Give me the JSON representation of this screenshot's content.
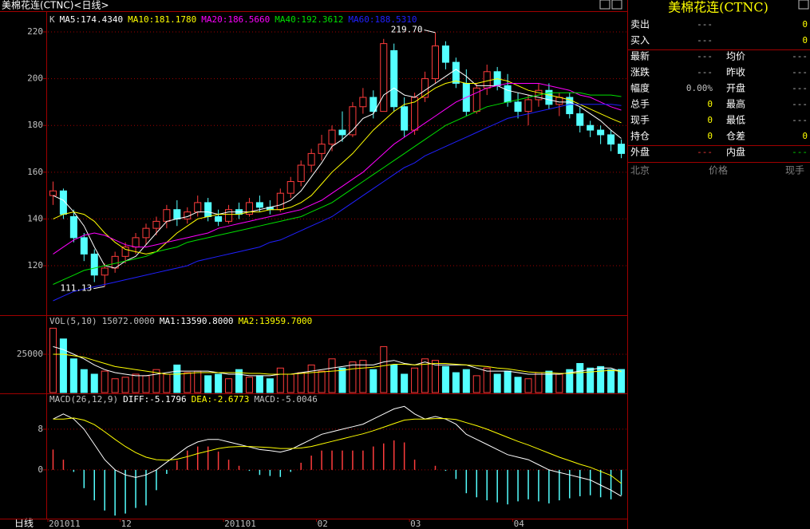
{
  "window": {
    "title": "美棉花连(CTNC)<日线>",
    "period": "日线"
  },
  "chart_data": [
    {
      "type": "candlestick",
      "title": "K",
      "categories": [
        "201011",
        null,
        null,
        null,
        null,
        null,
        null,
        "12",
        null,
        null,
        null,
        null,
        null,
        null,
        null,
        null,
        null,
        "201101",
        null,
        null,
        null,
        null,
        null,
        null,
        null,
        null,
        "02",
        null,
        null,
        null,
        null,
        null,
        null,
        null,
        null,
        "03",
        null,
        null,
        null,
        null,
        null,
        null,
        null,
        null,
        null,
        "04",
        null,
        null,
        null,
        null,
        null,
        null,
        null,
        null,
        null,
        null
      ],
      "open": [
        150,
        152,
        141,
        132,
        125,
        116,
        119,
        124,
        128,
        132,
        136,
        139,
        144,
        140,
        143,
        147,
        141,
        139,
        144,
        142,
        147,
        145,
        144,
        151,
        156,
        163,
        168,
        172,
        178,
        176,
        188,
        192,
        186,
        212,
        188,
        178,
        192,
        200,
        214,
        207,
        198,
        186,
        196,
        203,
        197,
        190,
        186,
        191,
        195,
        189,
        192,
        185,
        180,
        178,
        176,
        172
      ],
      "high": [
        156,
        153,
        144,
        134,
        127,
        121,
        126,
        130,
        134,
        138,
        141,
        146,
        148,
        145,
        150,
        149,
        144,
        146,
        147,
        149,
        150,
        148,
        153,
        158,
        165,
        170,
        176,
        180,
        186,
        190,
        196,
        195,
        217,
        215,
        192,
        194,
        203,
        219.7,
        216,
        209,
        204,
        198,
        206,
        205,
        202,
        194,
        193,
        198,
        198,
        194,
        194,
        188,
        182,
        180,
        178,
        174
      ],
      "low": [
        146,
        140,
        130,
        122,
        113,
        111.13,
        117,
        121,
        125,
        129,
        133,
        136,
        137,
        138,
        141,
        139,
        137,
        138,
        140,
        141,
        143,
        142,
        143,
        149,
        154,
        160,
        165,
        169,
        173,
        175,
        185,
        183,
        186,
        186,
        175,
        176,
        190,
        198,
        204,
        196,
        184,
        185,
        193,
        195,
        188,
        183,
        180,
        188,
        187,
        184,
        183,
        177,
        175,
        172,
        169,
        166
      ],
      "close": [
        152,
        142,
        132,
        125,
        116,
        119,
        124,
        128,
        132,
        136,
        139,
        144,
        140,
        143,
        147,
        141,
        139,
        144,
        142,
        147,
        145,
        144,
        151,
        156,
        163,
        168,
        172,
        178,
        176,
        188,
        192,
        186,
        215,
        188,
        178,
        192,
        200,
        214,
        207,
        198,
        186,
        196,
        203,
        197,
        190,
        186,
        191,
        195,
        189,
        192,
        185,
        180,
        178,
        176,
        172,
        168
      ],
      "up_color": "#ff3c3c",
      "down_color": "#54ffff",
      "series": [
        {
          "name": "MA5:174.4340",
          "color": "#ffffff",
          "values": [
            150,
            148,
            143,
            137,
            128,
            120,
            119,
            122,
            124,
            129,
            134,
            139,
            140,
            141,
            143,
            143,
            142,
            143,
            143,
            143,
            144,
            145,
            146,
            148,
            152,
            158,
            164,
            171,
            174,
            178,
            183,
            185,
            193,
            196,
            193,
            192,
            195,
            198,
            201,
            204,
            201,
            197,
            197,
            197,
            195,
            194,
            193,
            192,
            191,
            190,
            190,
            188,
            185,
            182,
            178,
            174.434
          ]
        },
        {
          "name": "MA10:181.1780",
          "color": "#ffff00",
          "values": [
            140,
            142,
            143,
            142,
            139,
            134,
            130,
            127,
            126,
            125,
            126,
            130,
            134,
            137,
            140,
            141,
            142,
            142,
            142,
            143,
            143,
            144,
            144,
            145,
            147,
            150,
            155,
            160,
            164,
            168,
            173,
            178,
            182,
            186,
            189,
            190,
            193,
            196,
            198,
            199,
            198,
            198,
            199,
            200,
            199,
            197,
            195,
            194,
            193,
            192,
            191,
            189,
            187,
            185,
            183,
            181.178
          ]
        },
        {
          "name": "MA20:186.5660",
          "color": "#ff00ff",
          "values": [
            125,
            128,
            131,
            133,
            134,
            133,
            131,
            129,
            128,
            128,
            129,
            130,
            131,
            132,
            133,
            134,
            136,
            137,
            138,
            139,
            140,
            141,
            142,
            143,
            144,
            146,
            148,
            151,
            154,
            157,
            160,
            164,
            168,
            172,
            175,
            178,
            181,
            184,
            187,
            190,
            192,
            194,
            196,
            197,
            198,
            198,
            198,
            198,
            197,
            196,
            195,
            193,
            192,
            190,
            188,
            186.566
          ]
        },
        {
          "name": "MA40:192.3612",
          "color": "#00e000",
          "values": [
            112,
            114,
            116,
            118,
            119,
            120,
            121,
            122,
            123,
            124,
            126,
            127,
            128,
            130,
            131,
            132,
            133,
            134,
            135,
            136,
            137,
            138,
            139,
            140,
            141,
            143,
            145,
            147,
            150,
            153,
            156,
            159,
            162,
            165,
            168,
            171,
            174,
            177,
            180,
            182,
            184,
            186,
            188,
            189,
            190,
            191,
            192,
            193,
            194,
            194,
            194,
            194,
            193,
            193,
            193,
            192.3612
          ]
        },
        {
          "name": "MA60:188.5310",
          "color": "#2020ff",
          "values": [
            105,
            107,
            109,
            110,
            111,
            112,
            113,
            114,
            115,
            116,
            117,
            118,
            119,
            120,
            122,
            123,
            124,
            125,
            126,
            127,
            128,
            130,
            131,
            133,
            135,
            137,
            139,
            141,
            144,
            147,
            150,
            153,
            156,
            159,
            162,
            164,
            167,
            169,
            171,
            173,
            175,
            177,
            179,
            181,
            183,
            184,
            185,
            186,
            187,
            188,
            189,
            189,
            189,
            189,
            189,
            188.531
          ]
        }
      ],
      "annotations": [
        "219.70",
        "111.13"
      ],
      "ylim": [
        99.2,
        227.5
      ],
      "yticks": [
        120,
        140,
        160,
        180,
        200,
        220
      ],
      "grid": true
    },
    {
      "type": "bar",
      "title": "VOL(5,10)",
      "current_label": "15072.0000",
      "values": [
        42000,
        35000,
        22000,
        15000,
        12000,
        14000,
        9000,
        10000,
        12000,
        11000,
        15000,
        12000,
        18000,
        13000,
        14000,
        11000,
        12000,
        9000,
        15000,
        10000,
        11000,
        9000,
        16000,
        12000,
        13000,
        18000,
        14000,
        22000,
        16000,
        20000,
        21000,
        15000,
        30000,
        18000,
        12000,
        16000,
        22000,
        21000,
        17000,
        13000,
        15000,
        11000,
        16000,
        12000,
        14000,
        10000,
        9000,
        13000,
        14000,
        12000,
        15000,
        19000,
        16000,
        17000,
        15000,
        15072
      ],
      "series": [
        {
          "name": "MA1:13590.8000",
          "color": "#ffffff",
          "values": [
            30000,
            28000,
            25000,
            22000,
            18000,
            15000,
            13000,
            12000,
            11000,
            11000,
            12000,
            13000,
            14000,
            14000,
            14000,
            14000,
            13000,
            12000,
            12000,
            11000,
            11000,
            11000,
            12000,
            12000,
            13000,
            14000,
            15000,
            16000,
            17000,
            18000,
            18000,
            18000,
            20000,
            21000,
            19000,
            18000,
            20000,
            18000,
            18000,
            18000,
            18000,
            16000,
            14000,
            14000,
            14000,
            13000,
            12000,
            12000,
            12000,
            12000,
            13000,
            14000,
            15000,
            16000,
            16000,
            13590.8
          ]
        },
        {
          "name": "MA2:13959.7000",
          "color": "#ffff00",
          "values": [
            25000,
            25000,
            24000,
            23000,
            21000,
            19000,
            17000,
            16000,
            15000,
            14000,
            13000,
            12000,
            12000,
            12500,
            13000,
            13000,
            13000,
            13000,
            13000,
            12500,
            12500,
            12000,
            12000,
            12000,
            12500,
            13000,
            13500,
            14000,
            14500,
            15500,
            16000,
            16500,
            17500,
            18500,
            18500,
            18000,
            18500,
            19000,
            19000,
            18500,
            18000,
            17500,
            17000,
            16000,
            15500,
            14500,
            13500,
            13000,
            13000,
            12500,
            12500,
            13000,
            13500,
            14000,
            14500,
            13959.7
          ]
        }
      ],
      "ylim": [
        0,
        50000
      ],
      "yticks": [
        25000
      ],
      "grid": true
    },
    {
      "type": "line",
      "title": "MACD(26,12,9)",
      "series": [
        {
          "name": "DIFF:-5.1796",
          "color": "#ffffff",
          "values": [
            10,
            11,
            10,
            8,
            5,
            2,
            0,
            -1,
            -1.5,
            -1,
            0,
            1.5,
            3,
            4.5,
            5.5,
            6,
            6,
            5.5,
            5,
            4.5,
            4,
            3.8,
            3.5,
            4,
            5,
            6,
            7,
            7.5,
            8,
            8.5,
            9,
            10,
            11,
            12,
            12.5,
            11,
            10,
            10.5,
            10,
            9,
            7,
            6,
            5,
            4,
            3,
            2.5,
            2,
            1,
            0,
            -0.5,
            -1,
            -1.5,
            -2,
            -3,
            -4,
            -5.1796
          ]
        },
        {
          "name": "DEA:-2.6773",
          "color": "#ffff00",
          "values": [
            10,
            10,
            10.2,
            9.8,
            8.9,
            7.5,
            6,
            4.6,
            3.4,
            2.5,
            2,
            1.9,
            2.1,
            2.6,
            3.2,
            3.7,
            4.2,
            4.5,
            4.6,
            4.6,
            4.5,
            4.4,
            4.2,
            4.2,
            4.3,
            4.6,
            5.1,
            5.6,
            6.1,
            6.6,
            7.1,
            7.7,
            8.4,
            9.1,
            9.8,
            10,
            10,
            10.1,
            10.1,
            9.9,
            9.3,
            8.7,
            8,
            7.2,
            6.4,
            5.6,
            4.9,
            4.1,
            3.3,
            2.5,
            1.8,
            1.1,
            0.5,
            -0.3,
            -1.1,
            -2.6773
          ]
        }
      ],
      "bars": {
        "name": "MACD:-5.0046",
        "values": [
          4,
          2,
          -0.4,
          -3.6,
          -6,
          -8,
          -9,
          -8.6,
          -7.5,
          -7,
          -4,
          -0.8,
          1.8,
          3.8,
          4.6,
          4.6,
          3.6,
          2,
          0.8,
          -0.2,
          -1,
          -1.2,
          -1.4,
          -0.4,
          1.4,
          2.8,
          3.8,
          3.8,
          3.8,
          3.8,
          3.8,
          4.6,
          5.2,
          5.8,
          5.4,
          2,
          0,
          0.8,
          -0.2,
          -1.8,
          -4.6,
          -5.4,
          -6,
          -6.4,
          -6.8,
          -6.2,
          -5.8,
          -6.2,
          -6.6,
          -6,
          -5.6,
          -5.2,
          -5,
          -5.4,
          -5.8,
          -5.0046
        ]
      },
      "ylim": [
        -9.6,
        14.9
      ],
      "yticks": [
        0,
        8
      ],
      "grid": true
    }
  ],
  "quote_panel": {
    "title": "美棉花连(CTNC)",
    "rows": [
      [
        "卖出",
        "---",
        "0"
      ],
      [
        "买入",
        "---",
        "0"
      ],
      [
        "最新",
        "---",
        "均价",
        "---"
      ],
      [
        "涨跌",
        "---",
        "昨收",
        "---"
      ],
      [
        "幅度",
        "0.00%",
        "开盘",
        "---"
      ],
      [
        "总手",
        "0",
        "最高",
        "---"
      ],
      [
        "现手",
        "0",
        "最低",
        "---"
      ],
      [
        "持仓",
        "0",
        "仓差",
        "0"
      ],
      [
        "外盘",
        "---",
        "内盘",
        "---"
      ]
    ],
    "book_header": [
      "北京",
      "价格",
      "现手"
    ]
  }
}
